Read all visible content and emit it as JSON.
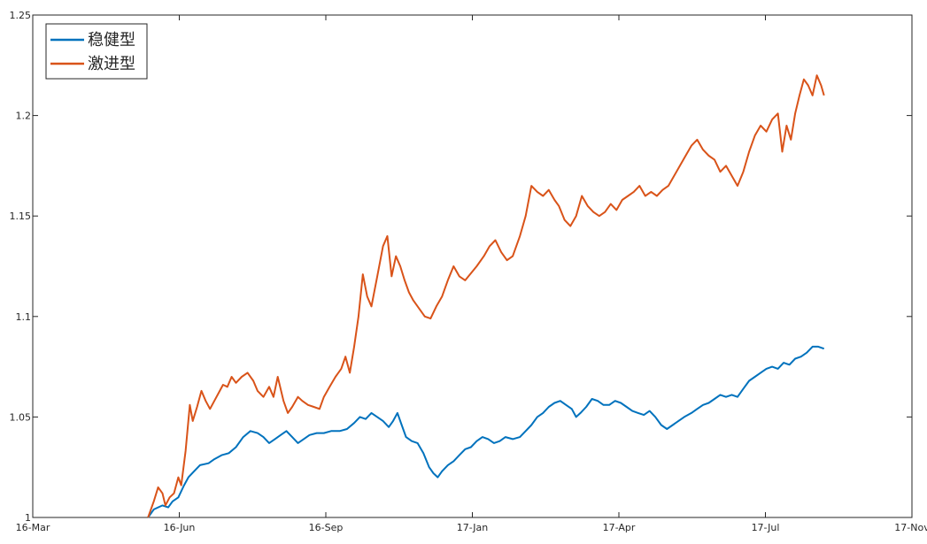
{
  "chart_data": {
    "type": "line",
    "title": "",
    "xlabel": "",
    "ylabel": "",
    "x_ticks": [
      "16-Mar",
      "16-Jun",
      "16-Sep",
      "17-Jan",
      "17-Apr",
      "17-Jul",
      "17-Nov"
    ],
    "y_ticks": [
      "1",
      "1.05",
      "1.1",
      "1.15",
      "1.2",
      "1.25"
    ],
    "xlim": [
      "2016-03-01",
      "2017-11-01"
    ],
    "ylim": [
      1.0,
      1.25
    ],
    "grid": false,
    "legend_position": "top-left",
    "series": [
      {
        "name": "稳健型",
        "color": "#0072BD",
        "points": [
          [
            "2016-05-20",
            1.0
          ],
          [
            "2016-05-24",
            1.004
          ],
          [
            "2016-05-30",
            1.006
          ],
          [
            "2016-06-03",
            1.005
          ],
          [
            "2016-06-06",
            1.008
          ],
          [
            "2016-06-10",
            1.01
          ],
          [
            "2016-06-14",
            1.016
          ],
          [
            "2016-06-17",
            1.02
          ],
          [
            "2016-06-21",
            1.023
          ],
          [
            "2016-06-25",
            1.026
          ],
          [
            "2016-07-01",
            1.027
          ],
          [
            "2016-07-05",
            1.029
          ],
          [
            "2016-07-10",
            1.031
          ],
          [
            "2016-07-15",
            1.032
          ],
          [
            "2016-07-20",
            1.035
          ],
          [
            "2016-07-25",
            1.04
          ],
          [
            "2016-07-30",
            1.043
          ],
          [
            "2016-08-04",
            1.042
          ],
          [
            "2016-08-08",
            1.04
          ],
          [
            "2016-08-12",
            1.037
          ],
          [
            "2016-08-16",
            1.039
          ],
          [
            "2016-08-20",
            1.041
          ],
          [
            "2016-08-24",
            1.043
          ],
          [
            "2016-08-28",
            1.04
          ],
          [
            "2016-09-01",
            1.037
          ],
          [
            "2016-09-05",
            1.039
          ],
          [
            "2016-09-09",
            1.041
          ],
          [
            "2016-09-14",
            1.042
          ],
          [
            "2016-09-19",
            1.042
          ],
          [
            "2016-09-24",
            1.043
          ],
          [
            "2016-09-30",
            1.043
          ],
          [
            "2016-10-05",
            1.044
          ],
          [
            "2016-10-10",
            1.047
          ],
          [
            "2016-10-14",
            1.05
          ],
          [
            "2016-10-18",
            1.049
          ],
          [
            "2016-10-22",
            1.052
          ],
          [
            "2016-10-26",
            1.05
          ],
          [
            "2016-10-30",
            1.048
          ],
          [
            "2016-11-03",
            1.045
          ],
          [
            "2016-11-06",
            1.048
          ],
          [
            "2016-11-09",
            1.052
          ],
          [
            "2016-11-12",
            1.046
          ],
          [
            "2016-11-15",
            1.04
          ],
          [
            "2016-11-19",
            1.038
          ],
          [
            "2016-11-23",
            1.037
          ],
          [
            "2016-11-27",
            1.032
          ],
          [
            "2016-12-01",
            1.025
          ],
          [
            "2016-12-04",
            1.022
          ],
          [
            "2016-12-07",
            1.02
          ],
          [
            "2016-12-10",
            1.023
          ],
          [
            "2016-12-14",
            1.026
          ],
          [
            "2016-12-18",
            1.028
          ],
          [
            "2016-12-22",
            1.031
          ],
          [
            "2016-12-26",
            1.034
          ],
          [
            "2016-12-30",
            1.035
          ],
          [
            "2017-01-03",
            1.038
          ],
          [
            "2017-01-07",
            1.04
          ],
          [
            "2017-01-11",
            1.039
          ],
          [
            "2017-01-15",
            1.037
          ],
          [
            "2017-01-19",
            1.038
          ],
          [
            "2017-01-23",
            1.04
          ],
          [
            "2017-01-28",
            1.039
          ],
          [
            "2017-02-02",
            1.04
          ],
          [
            "2017-02-06",
            1.043
          ],
          [
            "2017-02-10",
            1.046
          ],
          [
            "2017-02-14",
            1.05
          ],
          [
            "2017-02-18",
            1.052
          ],
          [
            "2017-02-22",
            1.055
          ],
          [
            "2017-02-26",
            1.057
          ],
          [
            "2017-03-02",
            1.058
          ],
          [
            "2017-03-06",
            1.056
          ],
          [
            "2017-03-10",
            1.054
          ],
          [
            "2017-03-13",
            1.05
          ],
          [
            "2017-03-16",
            1.052
          ],
          [
            "2017-03-20",
            1.055
          ],
          [
            "2017-03-24",
            1.059
          ],
          [
            "2017-03-28",
            1.058
          ],
          [
            "2017-04-01",
            1.056
          ],
          [
            "2017-04-05",
            1.056
          ],
          [
            "2017-04-09",
            1.058
          ],
          [
            "2017-04-13",
            1.057
          ],
          [
            "2017-04-17",
            1.055
          ],
          [
            "2017-04-21",
            1.053
          ],
          [
            "2017-04-25",
            1.052
          ],
          [
            "2017-04-29",
            1.051
          ],
          [
            "2017-05-03",
            1.053
          ],
          [
            "2017-05-07",
            1.05
          ],
          [
            "2017-05-11",
            1.046
          ],
          [
            "2017-05-15",
            1.044
          ],
          [
            "2017-05-19",
            1.046
          ],
          [
            "2017-05-23",
            1.048
          ],
          [
            "2017-05-27",
            1.05
          ],
          [
            "2017-06-01",
            1.052
          ],
          [
            "2017-06-05",
            1.054
          ],
          [
            "2017-06-09",
            1.056
          ],
          [
            "2017-06-13",
            1.057
          ],
          [
            "2017-06-17",
            1.059
          ],
          [
            "2017-06-21",
            1.061
          ],
          [
            "2017-06-25",
            1.06
          ],
          [
            "2017-06-29",
            1.061
          ],
          [
            "2017-07-03",
            1.06
          ],
          [
            "2017-07-07",
            1.064
          ],
          [
            "2017-07-11",
            1.068
          ],
          [
            "2017-07-15",
            1.07
          ],
          [
            "2017-07-19",
            1.072
          ],
          [
            "2017-07-23",
            1.074
          ],
          [
            "2017-07-27",
            1.075
          ],
          [
            "2017-07-31",
            1.074
          ],
          [
            "2017-08-04",
            1.077
          ],
          [
            "2017-08-08",
            1.076
          ],
          [
            "2017-08-12",
            1.079
          ],
          [
            "2017-08-16",
            1.08
          ],
          [
            "2017-08-20",
            1.082
          ],
          [
            "2017-08-24",
            1.085
          ],
          [
            "2017-08-28",
            1.085
          ],
          [
            "2017-09-01",
            1.084
          ]
        ]
      },
      {
        "name": "激进型",
        "color": "#D95319",
        "points": [
          [
            "2016-05-20",
            1.0
          ],
          [
            "2016-05-24",
            1.008
          ],
          [
            "2016-05-27",
            1.015
          ],
          [
            "2016-05-30",
            1.012
          ],
          [
            "2016-06-01",
            1.006
          ],
          [
            "2016-06-04",
            1.01
          ],
          [
            "2016-06-07",
            1.012
          ],
          [
            "2016-06-10",
            1.02
          ],
          [
            "2016-06-12",
            1.016
          ],
          [
            "2016-06-15",
            1.033
          ],
          [
            "2016-06-18",
            1.056
          ],
          [
            "2016-06-20",
            1.048
          ],
          [
            "2016-06-23",
            1.055
          ],
          [
            "2016-06-26",
            1.063
          ],
          [
            "2016-06-29",
            1.058
          ],
          [
            "2016-07-02",
            1.054
          ],
          [
            "2016-07-05",
            1.058
          ],
          [
            "2016-07-08",
            1.062
          ],
          [
            "2016-07-11",
            1.066
          ],
          [
            "2016-07-14",
            1.065
          ],
          [
            "2016-07-17",
            1.07
          ],
          [
            "2016-07-20",
            1.067
          ],
          [
            "2016-07-24",
            1.07
          ],
          [
            "2016-07-28",
            1.072
          ],
          [
            "2016-08-01",
            1.068
          ],
          [
            "2016-08-04",
            1.063
          ],
          [
            "2016-08-08",
            1.06
          ],
          [
            "2016-08-12",
            1.065
          ],
          [
            "2016-08-15",
            1.06
          ],
          [
            "2016-08-18",
            1.07
          ],
          [
            "2016-08-22",
            1.058
          ],
          [
            "2016-08-25",
            1.052
          ],
          [
            "2016-08-28",
            1.055
          ],
          [
            "2016-09-01",
            1.06
          ],
          [
            "2016-09-04",
            1.058
          ],
          [
            "2016-09-08",
            1.056
          ],
          [
            "2016-09-12",
            1.055
          ],
          [
            "2016-09-16",
            1.054
          ],
          [
            "2016-09-19",
            1.06
          ],
          [
            "2016-09-23",
            1.065
          ],
          [
            "2016-09-27",
            1.07
          ],
          [
            "2016-10-01",
            1.074
          ],
          [
            "2016-10-04",
            1.08
          ],
          [
            "2016-10-07",
            1.072
          ],
          [
            "2016-10-10",
            1.085
          ],
          [
            "2016-10-13",
            1.1
          ],
          [
            "2016-10-16",
            1.121
          ],
          [
            "2016-10-19",
            1.11
          ],
          [
            "2016-10-22",
            1.105
          ],
          [
            "2016-10-26",
            1.12
          ],
          [
            "2016-10-30",
            1.135
          ],
          [
            "2016-11-02",
            1.14
          ],
          [
            "2016-11-05",
            1.12
          ],
          [
            "2016-11-08",
            1.13
          ],
          [
            "2016-11-11",
            1.125
          ],
          [
            "2016-11-14",
            1.118
          ],
          [
            "2016-11-17",
            1.112
          ],
          [
            "2016-11-20",
            1.108
          ],
          [
            "2016-11-24",
            1.104
          ],
          [
            "2016-11-28",
            1.1
          ],
          [
            "2016-12-02",
            1.099
          ],
          [
            "2016-12-06",
            1.105
          ],
          [
            "2016-12-10",
            1.11
          ],
          [
            "2016-12-14",
            1.118
          ],
          [
            "2016-12-18",
            1.125
          ],
          [
            "2016-12-22",
            1.12
          ],
          [
            "2016-12-26",
            1.118
          ],
          [
            "2017-01-03",
            1.125
          ],
          [
            "2017-01-08",
            1.13
          ],
          [
            "2017-01-12",
            1.135
          ],
          [
            "2017-01-16",
            1.138
          ],
          [
            "2017-01-20",
            1.132
          ],
          [
            "2017-01-24",
            1.128
          ],
          [
            "2017-01-28",
            1.13
          ],
          [
            "2017-02-02",
            1.14
          ],
          [
            "2017-02-06",
            1.15
          ],
          [
            "2017-02-10",
            1.165
          ],
          [
            "2017-02-14",
            1.162
          ],
          [
            "2017-02-18",
            1.16
          ],
          [
            "2017-02-22",
            1.163
          ],
          [
            "2017-02-26",
            1.158
          ],
          [
            "2017-03-01",
            1.155
          ],
          [
            "2017-03-05",
            1.148
          ],
          [
            "2017-03-09",
            1.145
          ],
          [
            "2017-03-13",
            1.15
          ],
          [
            "2017-03-17",
            1.16
          ],
          [
            "2017-03-21",
            1.155
          ],
          [
            "2017-03-25",
            1.152
          ],
          [
            "2017-03-29",
            1.15
          ],
          [
            "2017-04-02",
            1.152
          ],
          [
            "2017-04-06",
            1.156
          ],
          [
            "2017-04-10",
            1.153
          ],
          [
            "2017-04-14",
            1.158
          ],
          [
            "2017-04-18",
            1.16
          ],
          [
            "2017-04-22",
            1.162
          ],
          [
            "2017-04-26",
            1.165
          ],
          [
            "2017-04-30",
            1.16
          ],
          [
            "2017-05-04",
            1.162
          ],
          [
            "2017-05-08",
            1.16
          ],
          [
            "2017-05-12",
            1.163
          ],
          [
            "2017-05-16",
            1.165
          ],
          [
            "2017-05-20",
            1.17
          ],
          [
            "2017-05-24",
            1.175
          ],
          [
            "2017-05-28",
            1.18
          ],
          [
            "2017-06-01",
            1.185
          ],
          [
            "2017-06-05",
            1.188
          ],
          [
            "2017-06-09",
            1.183
          ],
          [
            "2017-06-13",
            1.18
          ],
          [
            "2017-06-17",
            1.178
          ],
          [
            "2017-06-21",
            1.172
          ],
          [
            "2017-06-25",
            1.175
          ],
          [
            "2017-06-29",
            1.17
          ],
          [
            "2017-07-03",
            1.165
          ],
          [
            "2017-07-07",
            1.172
          ],
          [
            "2017-07-11",
            1.182
          ],
          [
            "2017-07-15",
            1.19
          ],
          [
            "2017-07-19",
            1.195
          ],
          [
            "2017-07-23",
            1.192
          ],
          [
            "2017-07-27",
            1.198
          ],
          [
            "2017-07-31",
            1.201
          ],
          [
            "2017-08-03",
            1.182
          ],
          [
            "2017-08-06",
            1.195
          ],
          [
            "2017-08-09",
            1.188
          ],
          [
            "2017-08-12",
            1.201
          ],
          [
            "2017-08-15",
            1.21
          ],
          [
            "2017-08-18",
            1.218
          ],
          [
            "2017-08-21",
            1.215
          ],
          [
            "2017-08-24",
            1.21
          ],
          [
            "2017-08-27",
            1.22
          ],
          [
            "2017-08-30",
            1.215
          ],
          [
            "2017-09-01",
            1.21
          ]
        ]
      }
    ]
  }
}
